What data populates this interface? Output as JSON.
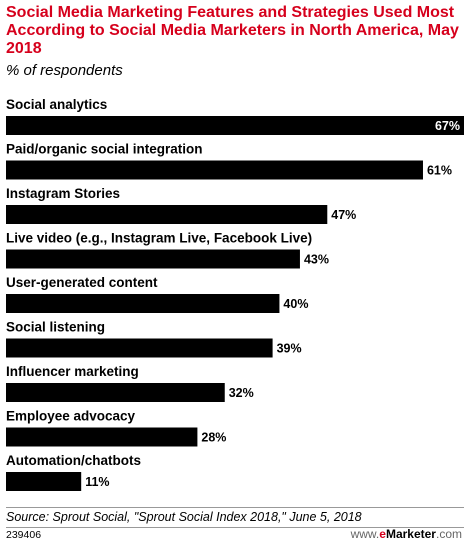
{
  "header": {
    "title": "Social Media Marketing Features and Strategies Used Most According to Social Media Marketers in North America, May 2018",
    "subtitle": "% of respondents"
  },
  "chart_data": {
    "type": "bar",
    "orientation": "horizontal",
    "categories": [
      "Social analytics",
      "Paid/organic social integration",
      "Instagram Stories",
      "Live video (e.g., Instagram Live, Facebook Live)",
      "User-generated content",
      "Social listening",
      "Influencer marketing",
      "Employee advocacy",
      "Automation/chatbots"
    ],
    "values": [
      67,
      61,
      47,
      43,
      40,
      39,
      32,
      28,
      11
    ],
    "value_labels": [
      "67%",
      "61%",
      "47%",
      "43%",
      "40%",
      "39%",
      "32%",
      "28%",
      "11%"
    ],
    "bar_color": "#000000",
    "label_inside_color": "#ffffff",
    "label_outside_color": "#000000",
    "xlim": [
      0,
      67
    ]
  },
  "footer": {
    "source": "Source: Sprout Social, \"Sprout Social Index 2018,\" June 5, 2018",
    "chart_id": "239406",
    "brand_prefix": "www.",
    "brand_e": "e",
    "brand_name": "Marketer",
    "brand_suffix": ".com"
  }
}
